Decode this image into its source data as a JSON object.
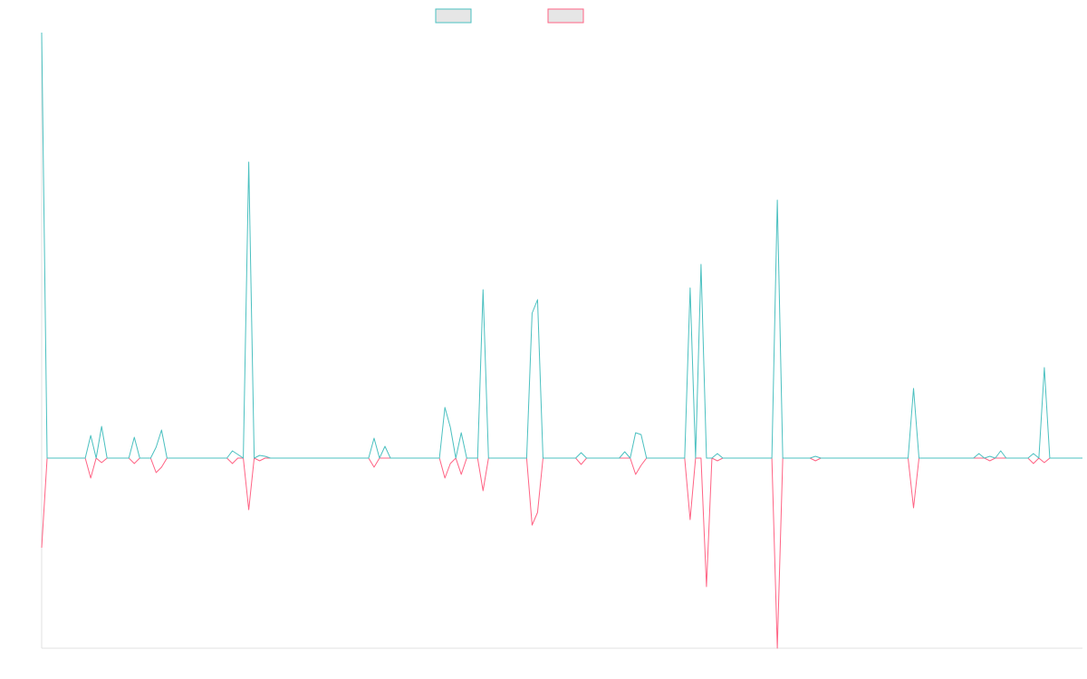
{
  "chart_data": {
    "type": "line",
    "legend": "top",
    "ylim": [
      -210,
      470
    ],
    "series": [
      {
        "color": "#4bc0c0",
        "values": [
          470,
          0,
          0,
          0,
          0,
          0,
          0,
          0,
          0,
          25,
          0,
          35,
          0,
          0,
          0,
          0,
          0,
          23,
          0,
          0,
          0,
          12,
          31,
          0,
          0,
          0,
          0,
          0,
          0,
          0,
          0,
          0,
          0,
          0,
          0,
          8,
          4,
          0,
          327,
          0,
          3,
          2,
          0,
          0,
          0,
          0,
          0,
          0,
          0,
          0,
          0,
          0,
          0,
          0,
          0,
          0,
          0,
          0,
          0,
          0,
          0,
          22,
          0,
          13,
          0,
          0,
          0,
          0,
          0,
          0,
          0,
          0,
          0,
          0,
          56,
          34,
          0,
          28,
          0,
          0,
          0,
          186,
          0,
          0,
          0,
          0,
          0,
          0,
          0,
          0,
          160,
          175,
          0,
          0,
          0,
          0,
          0,
          0,
          0,
          6,
          0,
          0,
          0,
          0,
          0,
          0,
          0,
          7,
          0,
          28,
          26,
          0,
          0,
          0,
          0,
          0,
          0,
          0,
          0,
          188,
          0,
          214,
          0,
          0,
          5,
          0,
          0,
          0,
          0,
          0,
          0,
          0,
          0,
          0,
          0,
          285,
          0,
          0,
          0,
          0,
          0,
          0,
          2,
          0,
          0,
          0,
          0,
          0,
          0,
          0,
          0,
          0,
          0,
          0,
          0,
          0,
          0,
          0,
          0,
          0,
          77,
          0,
          0,
          0,
          0,
          0,
          0,
          0,
          0,
          0,
          0,
          0,
          5,
          0,
          2,
          0,
          8,
          0,
          0,
          0,
          0,
          0,
          5,
          0,
          100,
          0,
          0,
          0,
          0,
          0,
          0,
          0
        ]
      },
      {
        "color": "#ff6384",
        "values": [
          -99,
          0,
          0,
          0,
          0,
          0,
          0,
          0,
          0,
          -22,
          0,
          -5,
          0,
          0,
          0,
          0,
          0,
          -6,
          0,
          0,
          0,
          -16,
          -10,
          0,
          0,
          0,
          0,
          0,
          0,
          0,
          0,
          0,
          0,
          0,
          0,
          -6,
          0,
          0,
          -57,
          0,
          -3,
          0,
          0,
          0,
          0,
          0,
          0,
          0,
          0,
          0,
          0,
          0,
          0,
          0,
          0,
          0,
          0,
          0,
          0,
          0,
          0,
          -10,
          0,
          0,
          0,
          0,
          0,
          0,
          0,
          0,
          0,
          0,
          0,
          0,
          -22,
          -6,
          0,
          -18,
          0,
          0,
          0,
          -36,
          0,
          0,
          0,
          0,
          0,
          0,
          0,
          0,
          -74,
          -60,
          0,
          0,
          0,
          0,
          0,
          0,
          0,
          -7,
          0,
          0,
          0,
          0,
          0,
          0,
          0,
          0,
          0,
          -18,
          -8,
          0,
          0,
          0,
          0,
          0,
          0,
          0,
          0,
          -68,
          0,
          0,
          -142,
          0,
          -3,
          0,
          0,
          0,
          0,
          0,
          0,
          0,
          0,
          0,
          0,
          -210,
          0,
          0,
          0,
          0,
          0,
          0,
          -3,
          0,
          0,
          0,
          0,
          0,
          0,
          0,
          0,
          0,
          0,
          0,
          0,
          0,
          0,
          0,
          0,
          0,
          -55,
          0,
          0,
          0,
          0,
          0,
          0,
          0,
          0,
          0,
          0,
          0,
          0,
          0,
          -3,
          0,
          0,
          0,
          0,
          0,
          0,
          0,
          -6,
          0,
          -5,
          0,
          0,
          0,
          0,
          0,
          0,
          0
        ]
      }
    ]
  }
}
